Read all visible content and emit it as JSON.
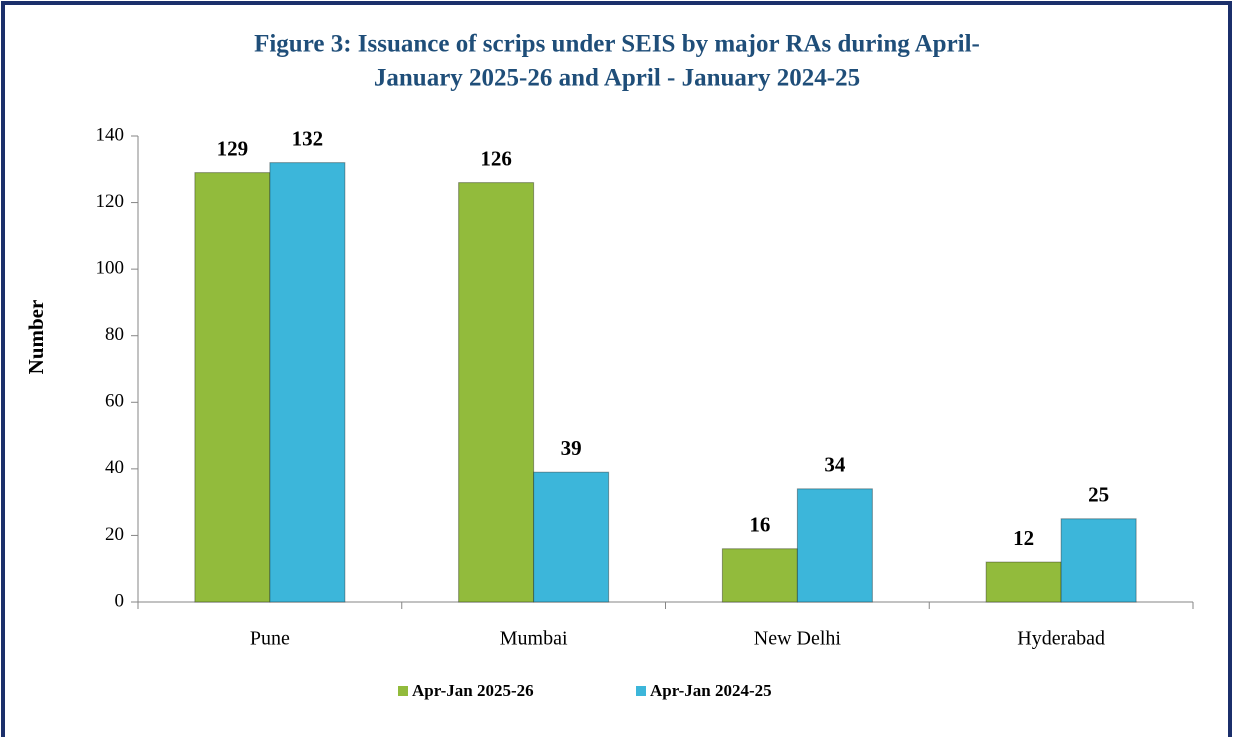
{
  "chart_data": {
    "type": "bar",
    "title": [
      "Figure 3: Issuance of scrips under SEIS by major RAs  during April-",
      "January 2025-26 and April - January 2024-25"
    ],
    "y_label": "Number",
    "categories": [
      "Pune",
      "Mumbai",
      "New Delhi",
      "Hyderabad"
    ],
    "series": [
      {
        "name": "Apr-Jan 2025-26",
        "color": "#92bb3c",
        "values": [
          129,
          126,
          16,
          12
        ]
      },
      {
        "name": "Apr-Jan 2024-25",
        "color": "#3cb6da",
        "values": [
          132,
          39,
          34,
          25
        ]
      }
    ],
    "ylim": [
      0,
      140
    ],
    "yticks": [
      0,
      20,
      40,
      60,
      80,
      100,
      120,
      140
    ],
    "legend": "bottom"
  }
}
